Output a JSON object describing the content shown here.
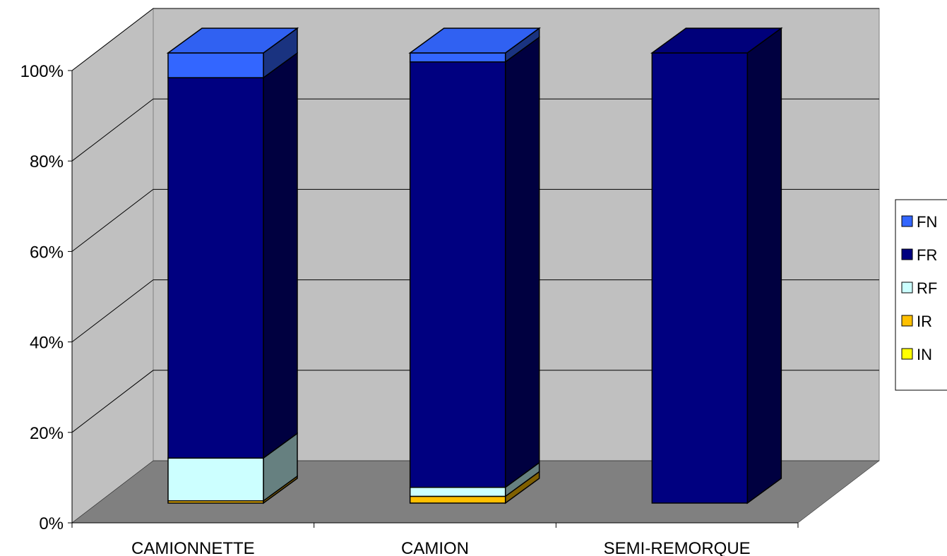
{
  "chart_data": {
    "type": "bar",
    "stacked": "percent",
    "three_d": true,
    "title": "",
    "xlabel": "",
    "ylabel": "",
    "ylim": [
      0,
      100
    ],
    "y_ticks": [
      "0%",
      "20%",
      "40%",
      "60%",
      "80%",
      "100%"
    ],
    "categories": [
      "CAMIONNETTE",
      "CAMION",
      "SEMI-REMORQUE"
    ],
    "series": [
      {
        "name": "IN",
        "color": "#ffff00",
        "values": [
          0,
          0,
          0
        ]
      },
      {
        "name": "IR",
        "color": "#ffc000",
        "values": [
          0.5,
          1.5,
          0
        ]
      },
      {
        "name": "RF",
        "color": "#ccffff",
        "values": [
          9.5,
          2,
          0
        ]
      },
      {
        "name": "FR",
        "color": "#000080",
        "values": [
          84.5,
          94.5,
          100
        ]
      },
      {
        "name": "FN",
        "color": "#3366ff",
        "values": [
          5.5,
          2,
          0
        ]
      }
    ],
    "legend_order": [
      "FN",
      "FR",
      "RF",
      "IR",
      "IN"
    ],
    "legend_position": "right",
    "grid": true,
    "wall_color": "#c0c0c0",
    "floor_color": "#808080"
  }
}
